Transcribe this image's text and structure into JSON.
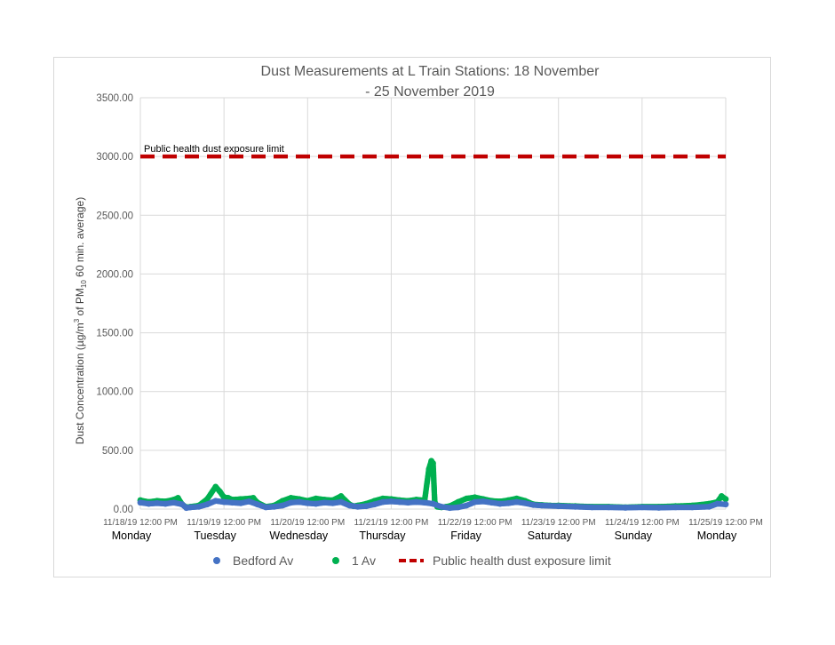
{
  "chart_data": {
    "type": "scatter",
    "title_lines": [
      "Dust Measurements at L Train Stations: 18 November",
      "- 25 November 2019"
    ],
    "ylabel_parts": [
      "Dust Concentration (µg/m",
      "3",
      " of PM",
      "10",
      " 60 min. average)"
    ],
    "ylim": [
      0,
      3500
    ],
    "yticks": [
      0,
      500,
      1000,
      1500,
      2000,
      2500,
      3000,
      3500
    ],
    "ytick_labels": [
      "0.00",
      "500.00",
      "1000.00",
      "1500.00",
      "2000.00",
      "2500.00",
      "3000.00",
      "3500.00"
    ],
    "x_range_days": [
      0,
      7
    ],
    "xticks": [
      {
        "x": 0,
        "label": "11/18/19 12:00 PM",
        "day": "Monday"
      },
      {
        "x": 1,
        "label": "11/19/19 12:00 PM",
        "day": "Tuesday"
      },
      {
        "x": 2,
        "label": "11/20/19 12:00 PM",
        "day": "Wednesday"
      },
      {
        "x": 3,
        "label": "11/21/19 12:00 PM",
        "day": "Thursday"
      },
      {
        "x": 4,
        "label": "11/22/19 12:00 PM",
        "day": "Friday"
      },
      {
        "x": 5,
        "label": "11/23/19 12:00 PM",
        "day": "Saturday"
      },
      {
        "x": 6,
        "label": "11/24/19 12:00 PM",
        "day": "Sunday"
      },
      {
        "x": 7,
        "label": "11/25/19 12:00 PM",
        "day": "Monday"
      }
    ],
    "grid": true,
    "legend_position": "bottom",
    "limit_line": {
      "name": "Public health dust exposure limit",
      "value": 3000,
      "color": "#c00000",
      "annotation": "Public health dust exposure limit"
    },
    "series": [
      {
        "name": "1 Av",
        "color": "#00b050",
        "x": [
          0.0,
          0.1,
          0.2,
          0.3,
          0.4,
          0.45,
          0.5,
          0.55,
          0.6,
          0.7,
          0.8,
          0.9,
          0.95,
          1.0,
          1.05,
          1.1,
          1.2,
          1.3,
          1.35,
          1.4,
          1.5,
          1.6,
          1.7,
          1.8,
          1.9,
          2.0,
          2.1,
          2.2,
          2.3,
          2.4,
          2.5,
          2.55,
          2.6,
          2.7,
          2.8,
          2.9,
          3.0,
          3.1,
          3.2,
          3.3,
          3.4,
          3.45,
          3.48,
          3.5,
          3.52,
          3.55,
          3.6,
          3.7,
          3.8,
          3.9,
          4.0,
          4.1,
          4.2,
          4.3,
          4.4,
          4.5,
          4.6,
          4.7,
          4.8,
          4.9,
          5.0,
          5.2,
          5.4,
          5.6,
          5.8,
          6.0,
          6.2,
          6.4,
          6.6,
          6.8,
          6.9,
          6.95,
          7.0
        ],
        "values": [
          75,
          60,
          70,
          65,
          80,
          95,
          40,
          15,
          20,
          30,
          85,
          190,
          150,
          100,
          95,
          80,
          85,
          90,
          95,
          55,
          20,
          30,
          70,
          95,
          85,
          70,
          90,
          80,
          75,
          110,
          40,
          25,
          30,
          45,
          70,
          90,
          85,
          75,
          70,
          80,
          75,
          340,
          410,
          390,
          60,
          20,
          15,
          25,
          60,
          90,
          100,
          85,
          70,
          65,
          75,
          90,
          70,
          40,
          35,
          30,
          30,
          25,
          20,
          20,
          15,
          20,
          20,
          25,
          30,
          45,
          60,
          110,
          85
        ]
      },
      {
        "name": "Bedford Av",
        "color": "#4472c4",
        "x": [
          0.0,
          0.1,
          0.2,
          0.3,
          0.4,
          0.5,
          0.55,
          0.6,
          0.7,
          0.8,
          0.9,
          1.0,
          1.1,
          1.2,
          1.3,
          1.4,
          1.5,
          1.6,
          1.7,
          1.8,
          1.9,
          2.0,
          2.1,
          2.2,
          2.3,
          2.4,
          2.5,
          2.6,
          2.7,
          2.8,
          2.9,
          3.0,
          3.1,
          3.2,
          3.3,
          3.4,
          3.5,
          3.6,
          3.7,
          3.8,
          3.9,
          4.0,
          4.1,
          4.2,
          4.3,
          4.4,
          4.5,
          4.6,
          4.7,
          4.8,
          5.0,
          5.2,
          5.4,
          5.6,
          5.8,
          6.0,
          6.2,
          6.4,
          6.6,
          6.8,
          6.9,
          7.0
        ],
        "values": [
          55,
          45,
          50,
          45,
          55,
          40,
          10,
          15,
          20,
          40,
          70,
          60,
          55,
          50,
          65,
          40,
          15,
          20,
          30,
          55,
          60,
          50,
          45,
          55,
          50,
          60,
          30,
          20,
          25,
          40,
          60,
          65,
          60,
          55,
          60,
          55,
          45,
          20,
          10,
          15,
          30,
          60,
          65,
          55,
          45,
          50,
          60,
          50,
          35,
          30,
          25,
          20,
          15,
          15,
          12,
          15,
          12,
          15,
          15,
          20,
          45,
          40
        ]
      }
    ]
  }
}
